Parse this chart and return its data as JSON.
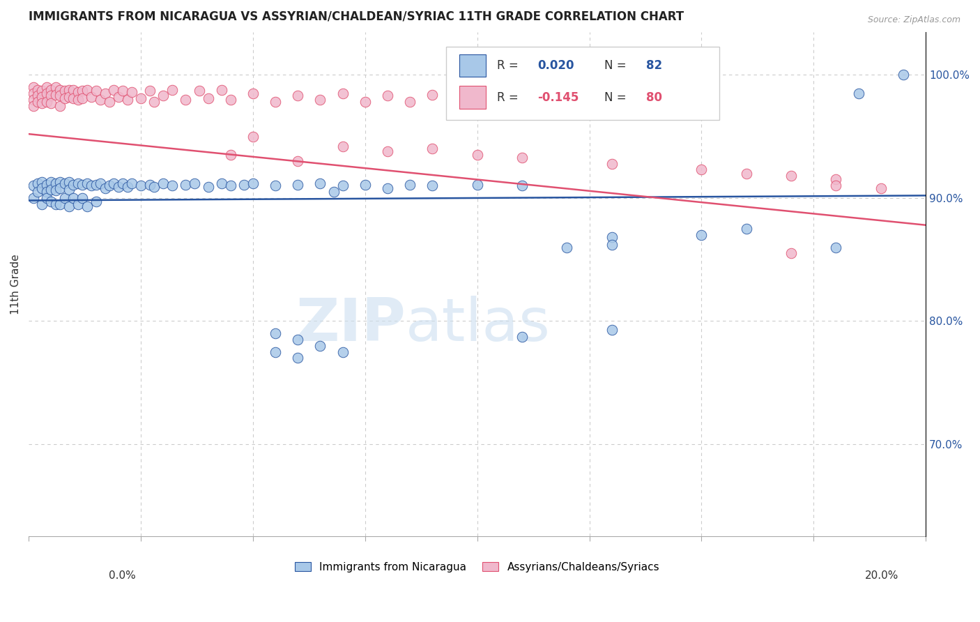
{
  "title": "IMMIGRANTS FROM NICARAGUA VS ASSYRIAN/CHALDEAN/SYRIAC 11TH GRADE CORRELATION CHART",
  "source": "Source: ZipAtlas.com",
  "ylabel": "11th Grade",
  "right_ytick_vals": [
    0.7,
    0.8,
    0.9,
    1.0
  ],
  "xmin": 0.0,
  "xmax": 0.2,
  "ymin": 0.625,
  "ymax": 1.035,
  "color_blue": "#a8c8e8",
  "color_pink": "#f0b8cc",
  "line_color_blue": "#2855a0",
  "line_color_pink": "#e05070",
  "label_nicaragua": "Immigrants from Nicaragua",
  "label_assyrian": "Assyrians/Chaldeans/Syriacs",
  "blue_scatter_x": [
    0.001,
    0.001,
    0.002,
    0.002,
    0.003,
    0.003,
    0.003,
    0.004,
    0.004,
    0.004,
    0.005,
    0.005,
    0.005,
    0.006,
    0.006,
    0.006,
    0.007,
    0.007,
    0.007,
    0.008,
    0.008,
    0.009,
    0.009,
    0.009,
    0.01,
    0.01,
    0.011,
    0.011,
    0.012,
    0.012,
    0.013,
    0.013,
    0.014,
    0.015,
    0.015,
    0.016,
    0.017,
    0.018,
    0.019,
    0.02,
    0.021,
    0.022,
    0.023,
    0.025,
    0.027,
    0.028,
    0.03,
    0.032,
    0.035,
    0.037,
    0.04,
    0.043,
    0.045,
    0.048,
    0.05,
    0.055,
    0.06,
    0.065,
    0.07,
    0.075,
    0.08,
    0.085,
    0.09,
    0.1,
    0.11,
    0.12,
    0.13,
    0.068,
    0.13,
    0.15,
    0.16,
    0.18,
    0.055,
    0.06,
    0.065,
    0.07,
    0.055,
    0.06,
    0.11,
    0.13,
    0.185,
    0.195
  ],
  "blue_scatter_y": [
    0.91,
    0.9,
    0.912,
    0.905,
    0.913,
    0.908,
    0.895,
    0.911,
    0.905,
    0.9,
    0.913,
    0.907,
    0.897,
    0.912,
    0.906,
    0.895,
    0.913,
    0.908,
    0.895,
    0.912,
    0.9,
    0.913,
    0.907,
    0.893,
    0.911,
    0.9,
    0.912,
    0.895,
    0.911,
    0.9,
    0.912,
    0.893,
    0.91,
    0.911,
    0.897,
    0.912,
    0.908,
    0.91,
    0.912,
    0.909,
    0.912,
    0.909,
    0.912,
    0.91,
    0.911,
    0.909,
    0.912,
    0.91,
    0.911,
    0.912,
    0.909,
    0.912,
    0.91,
    0.911,
    0.912,
    0.91,
    0.911,
    0.912,
    0.91,
    0.911,
    0.908,
    0.911,
    0.91,
    0.911,
    0.91,
    0.86,
    0.868,
    0.905,
    0.862,
    0.87,
    0.875,
    0.86,
    0.79,
    0.785,
    0.78,
    0.775,
    0.775,
    0.77,
    0.787,
    0.793,
    0.985,
    1.0
  ],
  "pink_scatter_x": [
    0.001,
    0.001,
    0.001,
    0.001,
    0.002,
    0.002,
    0.002,
    0.003,
    0.003,
    0.003,
    0.004,
    0.004,
    0.004,
    0.005,
    0.005,
    0.005,
    0.006,
    0.006,
    0.007,
    0.007,
    0.007,
    0.008,
    0.008,
    0.009,
    0.009,
    0.01,
    0.01,
    0.011,
    0.011,
    0.012,
    0.012,
    0.013,
    0.014,
    0.015,
    0.016,
    0.017,
    0.018,
    0.019,
    0.02,
    0.021,
    0.022,
    0.023,
    0.025,
    0.027,
    0.028,
    0.03,
    0.032,
    0.035,
    0.038,
    0.04,
    0.043,
    0.045,
    0.05,
    0.055,
    0.06,
    0.065,
    0.07,
    0.075,
    0.08,
    0.085,
    0.09,
    0.1,
    0.11,
    0.13,
    0.05,
    0.07,
    0.08,
    0.09,
    0.1,
    0.11,
    0.13,
    0.15,
    0.16,
    0.17,
    0.18,
    0.18,
    0.19,
    0.045,
    0.06,
    0.17
  ],
  "pink_scatter_y": [
    0.99,
    0.985,
    0.98,
    0.975,
    0.988,
    0.983,
    0.978,
    0.987,
    0.982,
    0.977,
    0.99,
    0.985,
    0.978,
    0.988,
    0.983,
    0.977,
    0.99,
    0.984,
    0.988,
    0.983,
    0.975,
    0.987,
    0.981,
    0.988,
    0.982,
    0.988,
    0.981,
    0.986,
    0.98,
    0.987,
    0.981,
    0.988,
    0.982,
    0.987,
    0.98,
    0.985,
    0.978,
    0.988,
    0.982,
    0.987,
    0.98,
    0.986,
    0.981,
    0.987,
    0.978,
    0.983,
    0.988,
    0.98,
    0.987,
    0.981,
    0.988,
    0.98,
    0.985,
    0.978,
    0.983,
    0.98,
    0.985,
    0.978,
    0.983,
    0.978,
    0.984,
    0.978,
    0.983,
    0.978,
    0.95,
    0.942,
    0.938,
    0.94,
    0.935,
    0.933,
    0.928,
    0.923,
    0.92,
    0.918,
    0.915,
    0.91,
    0.908,
    0.935,
    0.93,
    0.855
  ]
}
